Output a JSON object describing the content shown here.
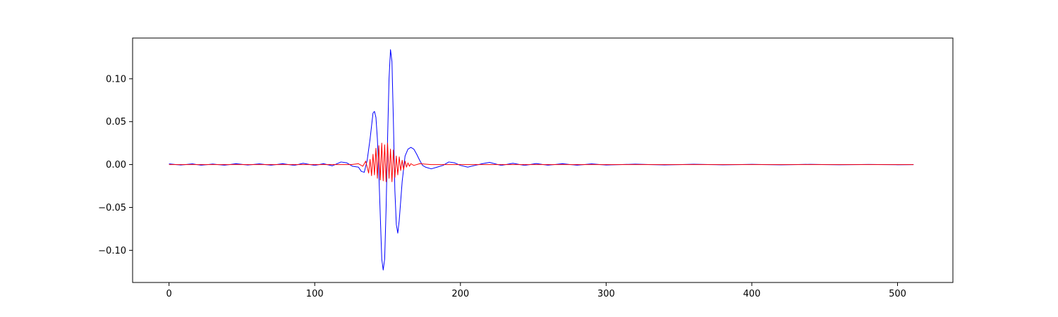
{
  "chart_data": {
    "type": "line",
    "title": "",
    "xlabel": "",
    "ylabel": "",
    "xlim": [
      -25,
      538
    ],
    "ylim": [
      -0.1375,
      0.1475
    ],
    "grid": false,
    "legend": "none",
    "x_ticks": [
      {
        "value": 0,
        "label": "0"
      },
      {
        "value": 100,
        "label": "100"
      },
      {
        "value": 200,
        "label": "200"
      },
      {
        "value": 300,
        "label": "300"
      },
      {
        "value": 400,
        "label": "400"
      },
      {
        "value": 500,
        "label": "500"
      }
    ],
    "y_ticks": [
      {
        "value": 0.1,
        "label": "0.10"
      },
      {
        "value": 0.05,
        "label": "0.05"
      },
      {
        "value": 0.0,
        "label": "0.00"
      },
      {
        "value": -0.05,
        "label": "−0.05"
      },
      {
        "value": -0.1,
        "label": "−0.10"
      }
    ],
    "series": [
      {
        "color": "#0000ff",
        "x": [
          0,
          8,
          16,
          22,
          30,
          38,
          46,
          54,
          62,
          70,
          78,
          86,
          92,
          100,
          106,
          112,
          118,
          122,
          126,
          130,
          132,
          134,
          136,
          138,
          140,
          141,
          142,
          143,
          144,
          145,
          146,
          147,
          148,
          149,
          150,
          151,
          152,
          153,
          154,
          155,
          156,
          157,
          158,
          160,
          162,
          164,
          166,
          168,
          170,
          172,
          174,
          176,
          178,
          180,
          184,
          188,
          192,
          196,
          200,
          205,
          210,
          215,
          220,
          228,
          236,
          244,
          252,
          260,
          270,
          280,
          290,
          300,
          320,
          340,
          360,
          380,
          400,
          420,
          440,
          460,
          480,
          500,
          511
        ],
        "y": [
          0.0008,
          -0.0005,
          0.0008,
          -0.0008,
          0.0006,
          -0.0008,
          0.001,
          -0.0005,
          0.0008,
          -0.0008,
          0.001,
          -0.001,
          0.0015,
          -0.001,
          0.001,
          -0.0015,
          0.003,
          0.002,
          -0.002,
          -0.003,
          -0.008,
          -0.009,
          0.005,
          0.03,
          0.06,
          0.062,
          0.055,
          0.03,
          -0.01,
          -0.06,
          -0.11,
          -0.123,
          -0.11,
          -0.05,
          0.03,
          0.1,
          0.134,
          0.12,
          0.05,
          -0.03,
          -0.07,
          -0.08,
          -0.065,
          -0.02,
          0.01,
          0.018,
          0.02,
          0.018,
          0.012,
          0.005,
          -0.001,
          -0.003,
          -0.004,
          -0.005,
          -0.003,
          -0.001,
          0.003,
          0.002,
          -0.001,
          -0.003,
          -0.001,
          0.001,
          0.0025,
          -0.001,
          0.0015,
          -0.001,
          0.0012,
          -0.0008,
          0.001,
          -0.0008,
          0.0008,
          -0.0005,
          0.0005,
          -0.0004,
          0.0004,
          -0.0003,
          0.0003,
          -0.0003,
          0.0003,
          -0.0002,
          0.0002,
          -0.0002,
          0.0
        ]
      },
      {
        "color": "#ff0000",
        "x": [
          0,
          60,
          110,
          125,
          130,
          133,
          135,
          137,
          138,
          139,
          140,
          141,
          142,
          143,
          144,
          145,
          146,
          147,
          148,
          149,
          150,
          151,
          152,
          153,
          154,
          155,
          156,
          157,
          158,
          159,
          160,
          161,
          162,
          163,
          164,
          165,
          166,
          168,
          172,
          180,
          190,
          260,
          511
        ],
        "y": [
          0.0,
          0.0,
          0.0,
          0.0,
          0.001,
          -0.002,
          0.004,
          -0.01,
          0.006,
          -0.013,
          0.012,
          -0.012,
          0.019,
          -0.016,
          0.022,
          -0.018,
          0.025,
          -0.019,
          0.023,
          -0.02,
          0.025,
          -0.016,
          0.018,
          -0.02,
          0.017,
          -0.015,
          0.01,
          -0.012,
          0.009,
          -0.007,
          0.005,
          -0.006,
          0.004,
          -0.003,
          0.002,
          -0.002,
          0.001,
          -0.001,
          0.001,
          0.0,
          0.0,
          0.0,
          0.0
        ]
      }
    ]
  }
}
